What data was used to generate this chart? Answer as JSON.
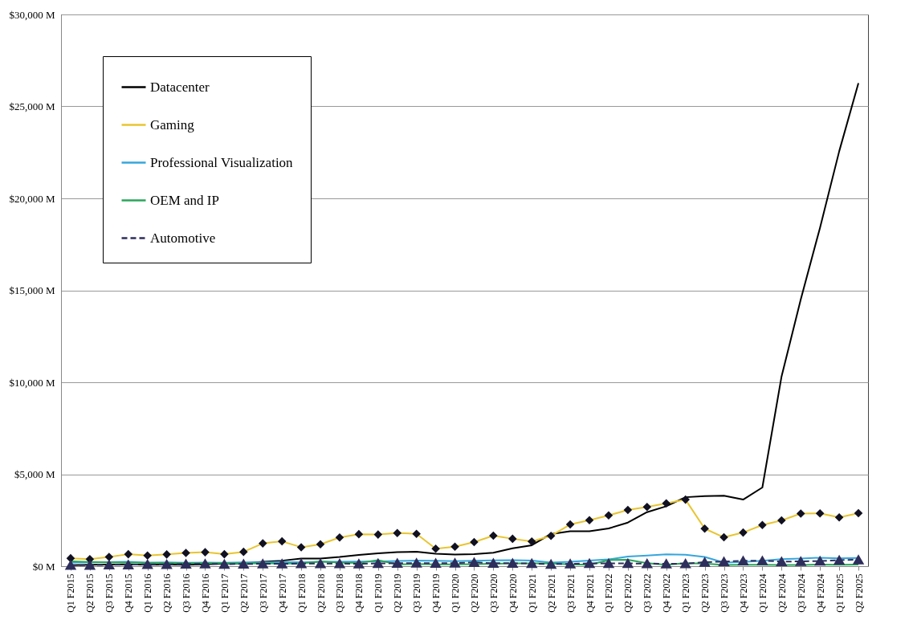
{
  "chart_data": {
    "type": "line",
    "categories": [
      "Q1 F2015",
      "Q2 F2015",
      "Q3 F2015",
      "Q4 F2015",
      "Q1 F2016",
      "Q2 F2016",
      "Q3 F2016",
      "Q4 F2016",
      "Q1 F2017",
      "Q2 F2017",
      "Q3 F2017",
      "Q4 F2017",
      "Q1 F2018",
      "Q2 F2018",
      "Q3 F2018",
      "Q4 F2018",
      "Q1 F2019",
      "Q2 F2019",
      "Q3 F2019",
      "Q4 F2019",
      "Q1 F2020",
      "Q2 F2020",
      "Q3 F2020",
      "Q4 F2020",
      "Q1 F2021",
      "Q2 F2021",
      "Q3 F2021",
      "Q4 F2021",
      "Q1 F2022",
      "Q2 F2022",
      "Q3 F2022",
      "Q4 F2022",
      "Q1 F2023",
      "Q2 F2023",
      "Q3 F2023",
      "Q4 F2023",
      "Q1 F2024",
      "Q2 F2024",
      "Q3 F2024",
      "Q4 F2024",
      "Q1 F2025",
      "Q2 F2025"
    ],
    "series": [
      {
        "name": "Datacenter",
        "color": "#000000",
        "marker": "none",
        "line_style": "solid",
        "values": [
          60,
          80,
          90,
          100,
          80,
          90,
          80,
          100,
          140,
          150,
          240,
          300,
          410,
          420,
          500,
          610,
          700,
          760,
          790,
          680,
          630,
          660,
          730,
          970,
          1140,
          1750,
          1900,
          1900,
          2050,
          2370,
          2940,
          3260,
          3750,
          3810,
          3830,
          3620,
          4280,
          10320,
          14510,
          18400,
          22560,
          26270
        ]
      },
      {
        "name": "Gaming",
        "color": "#e8c531",
        "marker": "diamond",
        "line_style": "solid",
        "values": [
          430,
          380,
          500,
          650,
          580,
          640,
          720,
          760,
          650,
          780,
          1240,
          1350,
          1030,
          1190,
          1560,
          1740,
          1720,
          1800,
          1760,
          950,
          1060,
          1310,
          1660,
          1490,
          1340,
          1650,
          2270,
          2500,
          2760,
          3060,
          3220,
          3420,
          3620,
          2040,
          1570,
          1830,
          2240,
          2490,
          2860,
          2870,
          2650,
          2880
        ]
      },
      {
        "name": "Professional Visualization",
        "color": "#35a6dc",
        "marker": "none",
        "line_style": "solid",
        "values": [
          200,
          210,
          220,
          240,
          190,
          210,
          190,
          200,
          190,
          210,
          210,
          230,
          210,
          240,
          240,
          250,
          250,
          280,
          310,
          290,
          270,
          290,
          320,
          330,
          310,
          200,
          240,
          310,
          370,
          520,
          580,
          640,
          620,
          500,
          200,
          230,
          300,
          380,
          420,
          460,
          430,
          450
        ]
      },
      {
        "name": "OEM and IP",
        "color": "#2aa55a",
        "marker": "none",
        "line_style": "solid",
        "values": [
          260,
          230,
          210,
          200,
          190,
          170,
          160,
          160,
          160,
          150,
          160,
          140,
          150,
          250,
          200,
          180,
          330,
          100,
          120,
          100,
          100,
          110,
          130,
          150,
          150,
          150,
          100,
          80,
          330,
          350,
          160,
          80,
          160,
          140,
          70,
          80,
          80,
          70,
          70,
          90,
          80,
          90
        ]
      },
      {
        "name": "Automotive",
        "color": "#2e2e5c",
        "marker": "triangle",
        "line_style": "dashed",
        "values": [
          50,
          50,
          80,
          80,
          100,
          100,
          120,
          130,
          110,
          120,
          130,
          130,
          140,
          140,
          140,
          130,
          150,
          160,
          170,
          160,
          170,
          210,
          160,
          160,
          150,
          110,
          130,
          150,
          150,
          150,
          140,
          130,
          140,
          220,
          250,
          290,
          300,
          250,
          260,
          280,
          330,
          350
        ]
      }
    ],
    "ylim": [
      0,
      30000
    ],
    "yticks": [
      {
        "value": 0,
        "label": "$0 M"
      },
      {
        "value": 5000,
        "label": "$5,000 M"
      },
      {
        "value": 10000,
        "label": "$10,000 M"
      },
      {
        "value": 15000,
        "label": "$15,000 M"
      },
      {
        "value": 20000,
        "label": "$20,000 M"
      },
      {
        "value": 25000,
        "label": "$25,000 M"
      },
      {
        "value": 30000,
        "label": "$30,000 M"
      }
    ],
    "grid": "y",
    "legend": "top left"
  }
}
